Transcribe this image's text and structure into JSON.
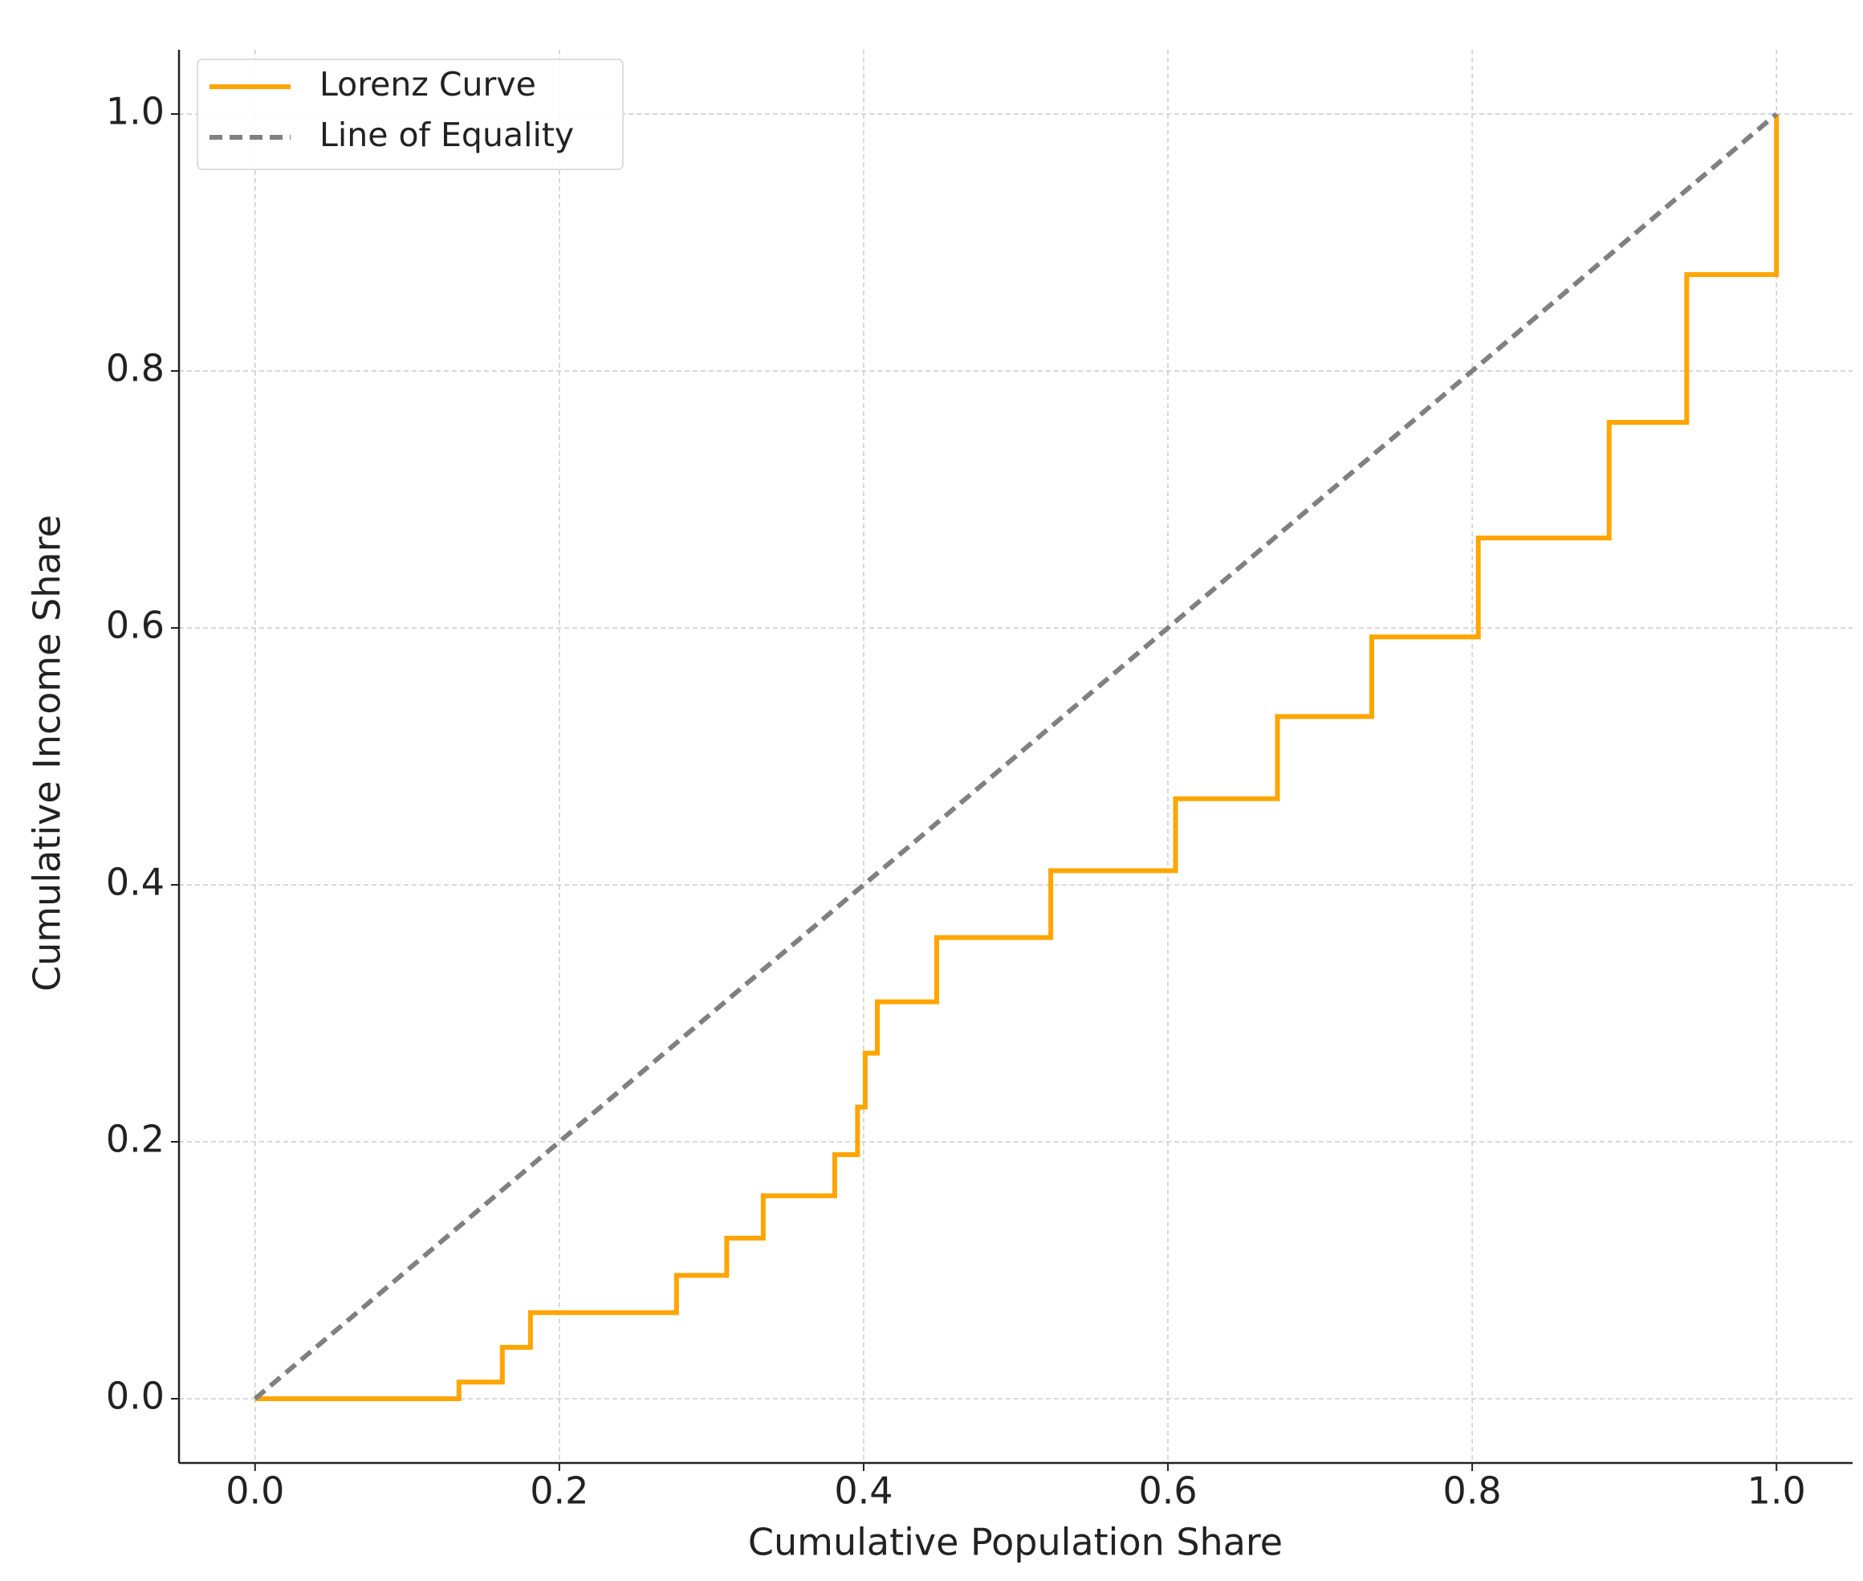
{
  "chart_data": {
    "type": "line",
    "xlabel": "Cumulative Population Share",
    "ylabel": "Cumulative Income Share",
    "series": [
      {
        "name": "Lorenz Curve",
        "color": "#ffa500",
        "style": "solid",
        "drawstyle": "steps-post",
        "x": [
          0,
          0.134,
          0.1625,
          0.181,
          0.277,
          0.31,
          0.334,
          0.381,
          0.396,
          0.401,
          0.409,
          0.448,
          0.523,
          0.605,
          0.672,
          0.734,
          0.804,
          0.89,
          0.941,
          1.0
        ],
        "values": [
          0,
          0.013,
          0.04,
          0.067,
          0.096,
          0.125,
          0.158,
          0.19,
          0.227,
          0.269,
          0.309,
          0.359,
          0.411,
          0.467,
          0.531,
          0.593,
          0.67,
          0.76,
          0.875,
          1.0
        ]
      },
      {
        "name": "Line of Equality",
        "color": "#808080",
        "style": "dashed",
        "drawstyle": "default",
        "x": [
          0,
          1
        ],
        "values": [
          0,
          1
        ]
      }
    ],
    "xlim": [
      -0.05,
      1.05
    ],
    "ylim": [
      -0.05,
      1.05
    ],
    "xticks": [
      {
        "value": 0,
        "label": "0.0"
      },
      0.2,
      0.4,
      0.6,
      0.8,
      {
        "value": 1,
        "label": "1.0"
      }
    ],
    "yticks": [
      {
        "value": 0,
        "label": "0.0"
      },
      0.2,
      0.4,
      0.6,
      0.8,
      {
        "value": 1,
        "label": "1.0"
      }
    ],
    "grid": true,
    "legend": "upper left"
  }
}
